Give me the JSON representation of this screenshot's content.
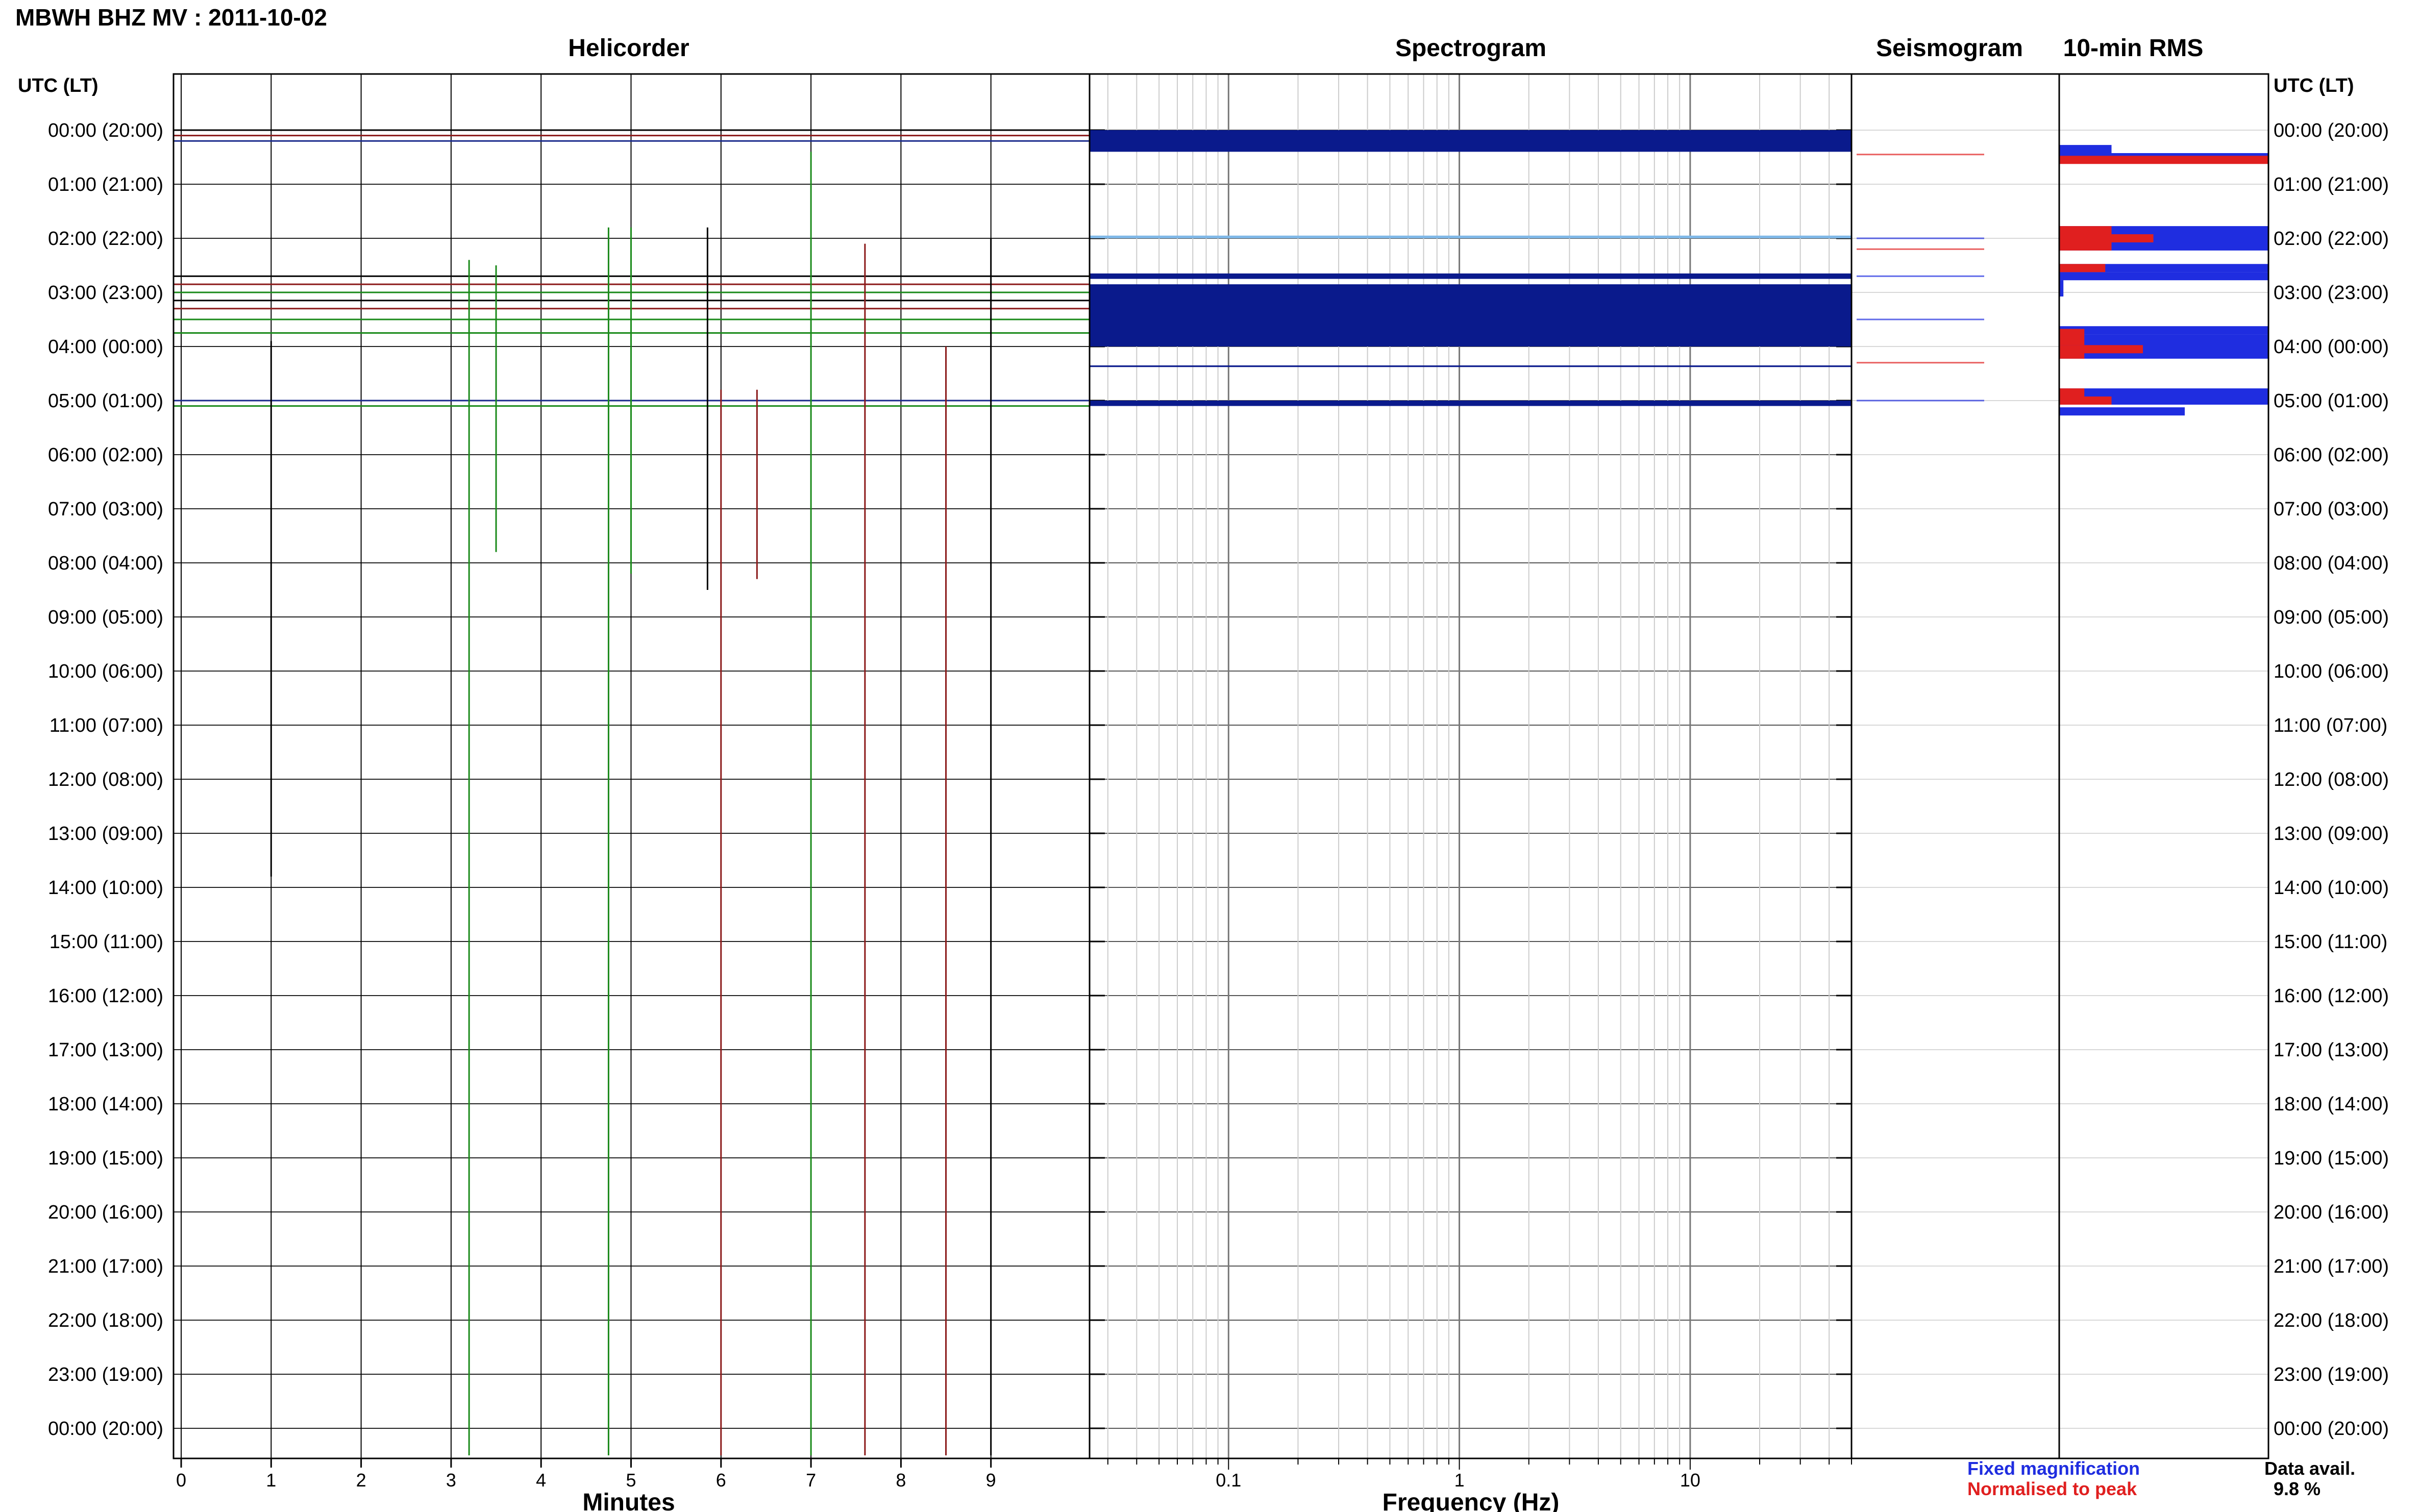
{
  "title": "MBWH BHZ MV : 2011-10-02",
  "panels": {
    "helicorder": "Helicorder",
    "spectrogram": "Spectrogram",
    "seismogram": "Seismogram",
    "rms": "10-min RMS"
  },
  "row_axis_label": "UTC (LT)",
  "row_labels": [
    "00:00 (20:00)",
    "01:00 (21:00)",
    "02:00 (22:00)",
    "03:00 (23:00)",
    "04:00 (00:00)",
    "05:00 (01:00)",
    "06:00 (02:00)",
    "07:00 (03:00)",
    "08:00 (04:00)",
    "09:00 (05:00)",
    "10:00 (06:00)",
    "11:00 (07:00)",
    "12:00 (08:00)",
    "13:00 (09:00)",
    "14:00 (10:00)",
    "15:00 (11:00)",
    "16:00 (12:00)",
    "17:00 (13:00)",
    "18:00 (14:00)",
    "19:00 (15:00)",
    "20:00 (16:00)",
    "21:00 (17:00)",
    "22:00 (18:00)",
    "23:00 (19:00)",
    "00:00 (20:00)"
  ],
  "x_axes": {
    "minutes_label": "Minutes",
    "minutes_ticks": [
      "0",
      "1",
      "2",
      "3",
      "4",
      "5",
      "6",
      "7",
      "8",
      "9"
    ],
    "frequency_label": "Frequency (Hz)",
    "frequency_ticks": [
      "0.1",
      "1",
      "10"
    ]
  },
  "legend": {
    "fixed": "Fixed magnification",
    "normalised": "Normalised to peak",
    "avail_label": "Data avail.",
    "avail_value": "9.8 %"
  },
  "colors": {
    "fixed_magnification": "#1f2de0",
    "normalised_to_peak": "#e01f1f",
    "spectrogram_band": "#0a1a8c",
    "helicorder_black": "#000000",
    "helicorder_red": "#8b1a1a",
    "helicorder_green": "#1a8a1a",
    "helicorder_blue": "#1a2a8c"
  },
  "chart_data": [
    {
      "type": "line",
      "title": "Helicorder",
      "xlabel": "Minutes",
      "ylabel": "UTC (LT)",
      "xlim": [
        0,
        10
      ],
      "rows_hours": 24,
      "note_coverage_hours": [
        0,
        5.1
      ],
      "rows": [
        {
          "hour": 0.0,
          "color": "black"
        },
        {
          "hour": 0.1,
          "color": "red"
        },
        {
          "hour": 0.2,
          "color": "blue"
        },
        {
          "hour": 2.7,
          "color": "black"
        },
        {
          "hour": 2.85,
          "color": "red"
        },
        {
          "hour": 3.0,
          "color": "green"
        },
        {
          "hour": 3.15,
          "color": "black"
        },
        {
          "hour": 3.3,
          "color": "red"
        },
        {
          "hour": 3.5,
          "color": "green"
        },
        {
          "hour": 3.75,
          "color": "green"
        },
        {
          "hour": 5.0,
          "color": "blue"
        },
        {
          "hour": 5.1,
          "color": "green"
        }
      ],
      "spikes": [
        {
          "minute": 1.0,
          "from_hour": 3.9,
          "to_hour": 13.8,
          "color": "black"
        },
        {
          "minute": 3.2,
          "from_hour": 2.4,
          "to_hour": 24.5,
          "color": "green"
        },
        {
          "minute": 3.5,
          "from_hour": 2.5,
          "to_hour": 7.8,
          "color": "green"
        },
        {
          "minute": 4.75,
          "from_hour": 1.8,
          "to_hour": 24.5,
          "color": "green"
        },
        {
          "minute": 5.0,
          "from_hour": 1.8,
          "to_hour": 8.2,
          "color": "green"
        },
        {
          "minute": 5.85,
          "from_hour": 1.8,
          "to_hour": 8.5,
          "color": "black"
        },
        {
          "minute": 6.0,
          "from_hour": 4.8,
          "to_hour": 24.5,
          "color": "red"
        },
        {
          "minute": 6.4,
          "from_hour": 4.8,
          "to_hour": 8.3,
          "color": "red"
        },
        {
          "minute": 7.0,
          "from_hour": 0.4,
          "to_hour": 24.5,
          "color": "green"
        },
        {
          "minute": 7.6,
          "from_hour": 2.1,
          "to_hour": 24.5,
          "color": "red"
        },
        {
          "minute": 8.5,
          "from_hour": 4.0,
          "to_hour": 24.5,
          "color": "red"
        },
        {
          "minute": 9.0,
          "from_hour": 2.0,
          "to_hour": 24.5,
          "color": "black"
        }
      ]
    },
    {
      "type": "heatmap",
      "title": "Spectrogram",
      "xlabel": "Frequency (Hz)",
      "xscale": "log",
      "xlim": [
        0.025,
        50
      ],
      "bands_hours": [
        {
          "from": 0.0,
          "to": 0.4,
          "color": "#0a1a8c"
        },
        {
          "from": 1.95,
          "to": 2.0,
          "color": "#7fb8e8"
        },
        {
          "from": 2.65,
          "to": 2.75,
          "color": "#0a1a8c"
        },
        {
          "from": 2.85,
          "to": 4.0,
          "color": "#0a1a8c"
        },
        {
          "from": 4.35,
          "to": 4.38,
          "color": "#0a1a8c"
        },
        {
          "from": 5.0,
          "to": 5.1,
          "color": "#0a1a8c"
        }
      ]
    },
    {
      "type": "line",
      "title": "Seismogram",
      "rows": [
        {
          "hour": 0.45,
          "color": "red"
        },
        {
          "hour": 2.0,
          "color": "blue"
        },
        {
          "hour": 2.2,
          "color": "red"
        },
        {
          "hour": 2.7,
          "color": "blue"
        },
        {
          "hour": 3.5,
          "color": "blue"
        },
        {
          "hour": 4.3,
          "color": "red"
        },
        {
          "hour": 5.0,
          "color": "blue"
        }
      ]
    },
    {
      "type": "bar",
      "title": "10-min RMS",
      "orientation": "horizontal",
      "xlim": [
        0,
        1
      ],
      "series": [
        {
          "name": "Fixed magnification",
          "color": "#1f2de0",
          "bars": [
            {
              "hour": 0.35,
              "value": 0.25
            },
            {
              "hour": 0.5,
              "value": 1.0
            },
            {
              "hour": 1.85,
              "value": 1.0
            },
            {
              "hour": 2.0,
              "value": 1.0
            },
            {
              "hour": 2.15,
              "value": 1.0
            },
            {
              "hour": 2.55,
              "value": 1.0
            },
            {
              "hour": 2.7,
              "value": 1.0
            },
            {
              "hour": 2.85,
              "value": 0.02
            },
            {
              "hour": 3.0,
              "value": 0.02
            },
            {
              "hour": 3.7,
              "value": 1.0
            },
            {
              "hour": 3.85,
              "value": 1.0
            },
            {
              "hour": 4.0,
              "value": 1.0
            },
            {
              "hour": 4.15,
              "value": 1.0
            },
            {
              "hour": 4.85,
              "value": 1.0
            },
            {
              "hour": 5.0,
              "value": 1.0
            },
            {
              "hour": 5.2,
              "value": 0.6
            }
          ]
        },
        {
          "name": "Normalised to peak",
          "color": "#e01f1f",
          "bars": [
            {
              "hour": 0.55,
              "value": 1.0
            },
            {
              "hour": 1.85,
              "value": 0.25
            },
            {
              "hour": 2.0,
              "value": 0.45
            },
            {
              "hour": 2.15,
              "value": 0.25
            },
            {
              "hour": 2.55,
              "value": 0.22
            },
            {
              "hour": 3.75,
              "value": 0.12
            },
            {
              "hour": 3.9,
              "value": 0.12
            },
            {
              "hour": 4.05,
              "value": 0.4
            },
            {
              "hour": 4.15,
              "value": 0.12
            },
            {
              "hour": 4.85,
              "value": 0.12
            },
            {
              "hour": 5.0,
              "value": 0.25
            }
          ]
        }
      ]
    }
  ]
}
